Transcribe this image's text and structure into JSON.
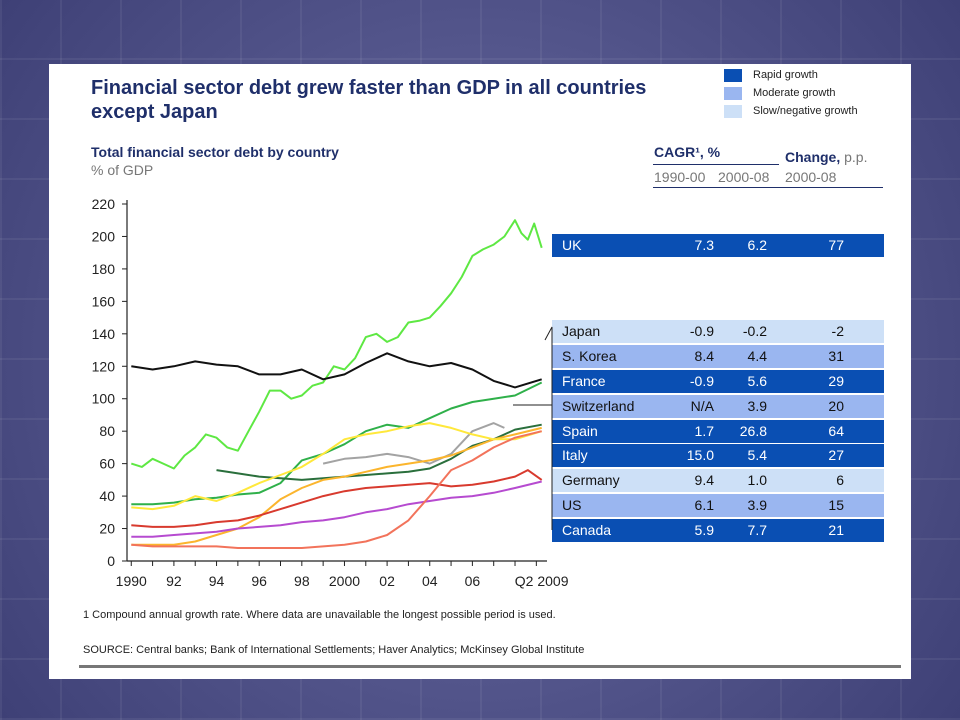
{
  "slide": {
    "title": "Financial sector debt grew faster than GDP in all countries except Japan",
    "subtitle": "Total financial sector debt by country",
    "unit": "% of GDP",
    "footnote": "1 Compound annual growth rate. Where data are unavailable the longest possible period is used.",
    "source": "SOURCE: Central banks; Bank of International Settlements; Haver Analytics; McKinsey Global Institute"
  },
  "legend": [
    {
      "label": "Rapid growth",
      "color": "#0a4fb3"
    },
    {
      "label": "Moderate growth",
      "color": "#9ab6f0"
    },
    {
      "label": "Slow/negative growth",
      "color": "#cde0f7"
    }
  ],
  "table_header": {
    "cagr": "CAGR¹, %",
    "change": "Change,",
    "change_unit": "p.p.",
    "col1": "1990-00",
    "col2": "2000-08",
    "col3": "2000-08"
  },
  "table_rows": [
    {
      "name": "UK",
      "cagr_9000": "7.3",
      "cagr_0008": "6.2",
      "change": "77",
      "group": "rapid"
    },
    {
      "name": "Japan",
      "cagr_9000": "-0.9",
      "cagr_0008": "-0.2",
      "change": "-2",
      "group": "slow"
    },
    {
      "name": "S. Korea",
      "cagr_9000": "8.4",
      "cagr_0008": "4.4",
      "change": "31",
      "group": "moderate"
    },
    {
      "name": "France",
      "cagr_9000": "-0.9",
      "cagr_0008": "5.6",
      "change": "29",
      "group": "rapid"
    },
    {
      "name": "Switzerland",
      "cagr_9000": "N/A",
      "cagr_0008": "3.9",
      "change": "20",
      "group": "moderate"
    },
    {
      "name": "Spain",
      "cagr_9000": "1.7",
      "cagr_0008": "26.8",
      "change": "64",
      "group": "rapid"
    },
    {
      "name": "Italy",
      "cagr_9000": "15.0",
      "cagr_0008": "5.4",
      "change": "27",
      "group": "rapid"
    },
    {
      "name": "Germany",
      "cagr_9000": "9.4",
      "cagr_0008": "1.0",
      "change": "6",
      "group": "slow"
    },
    {
      "name": "US",
      "cagr_9000": "6.1",
      "cagr_0008": "3.9",
      "change": "15",
      "group": "moderate"
    },
    {
      "name": "Canada",
      "cagr_9000": "5.9",
      "cagr_0008": "7.7",
      "change": "21",
      "group": "rapid"
    }
  ],
  "chart_data": {
    "type": "line",
    "title": "Total financial sector debt by country",
    "ylabel": "% of GDP",
    "xlabel": "",
    "ylim": [
      0,
      220
    ],
    "xlim": [
      1989.8,
      2009.5
    ],
    "yticks": [
      0,
      20,
      40,
      60,
      80,
      100,
      120,
      140,
      160,
      180,
      200,
      220
    ],
    "xticks": [
      {
        "label": "1990",
        "x": 1990
      },
      {
        "label": "92",
        "x": 1992
      },
      {
        "label": "94",
        "x": 1994
      },
      {
        "label": "96",
        "x": 1996
      },
      {
        "label": "98",
        "x": 1998
      },
      {
        "label": "2000",
        "x": 2000
      },
      {
        "label": "02",
        "x": 2002
      },
      {
        "label": "04",
        "x": 2004
      },
      {
        "label": "06",
        "x": 2006
      },
      {
        "label": "Q2 2009",
        "x": 2009.25
      }
    ],
    "grid": false,
    "series": [
      {
        "name": "UK",
        "color": "#5ee843",
        "x": [
          1990,
          1990.5,
          1991,
          1991.5,
          1992,
          1992.5,
          1993,
          1993.5,
          1994,
          1994.5,
          1995,
          1995.5,
          1996,
          1996.5,
          1997,
          1997.5,
          1998,
          1998.5,
          1999,
          1999.5,
          2000,
          2000.5,
          2001,
          2001.5,
          2002,
          2002.5,
          2003,
          2003.5,
          2004,
          2004.5,
          2005,
          2005.5,
          2006,
          2006.5,
          2007,
          2007.5,
          2008,
          2008.3,
          2008.6,
          2008.9,
          2009.25
        ],
        "y": [
          60,
          58,
          63,
          60,
          57,
          65,
          70,
          78,
          76,
          70,
          68,
          80,
          92,
          105,
          105,
          100,
          102,
          108,
          110,
          120,
          118,
          125,
          138,
          140,
          135,
          138,
          147,
          148,
          150,
          157,
          165,
          175,
          188,
          192,
          195,
          200,
          210,
          202,
          198,
          208,
          193
        ]
      },
      {
        "name": "Japan",
        "color": "#111111",
        "x": [
          1990,
          1991,
          1992,
          1993,
          1994,
          1995,
          1996,
          1997,
          1998,
          1999,
          2000,
          2001,
          2002,
          2003,
          2004,
          2005,
          2006,
          2007,
          2008,
          2009.25
        ],
        "y": [
          120,
          118,
          120,
          123,
          121,
          120,
          115,
          115,
          118,
          112,
          115,
          122,
          128,
          123,
          120,
          122,
          118,
          111,
          107,
          112
        ]
      },
      {
        "name": "S. Korea",
        "color": "#2fb04a",
        "x": [
          1990,
          1991,
          1992,
          1993,
          1994,
          1995,
          1996,
          1997,
          1998,
          1999,
          2000,
          2001,
          2002,
          2003,
          2004,
          2005,
          2006,
          2007,
          2008,
          2009.25
        ],
        "y": [
          35,
          35,
          36,
          38,
          39,
          41,
          42,
          48,
          62,
          66,
          72,
          80,
          84,
          82,
          88,
          94,
          98,
          100,
          102,
          110
        ]
      },
      {
        "name": "France",
        "color": "#2a6f3c",
        "x": [
          1994,
          1995,
          1996,
          1997,
          1998,
          1999,
          2000,
          2001,
          2002,
          2003,
          2004,
          2005,
          2006,
          2007,
          2008,
          2009.25
        ],
        "y": [
          56,
          54,
          52,
          51,
          50,
          51,
          52,
          53,
          54,
          55,
          57,
          63,
          71,
          75,
          81,
          84
        ]
      },
      {
        "name": "Switzerland",
        "color": "#a3a3a3",
        "x": [
          1999,
          2000,
          2001,
          2002,
          2003,
          2004,
          2005,
          2006,
          2007,
          2007.5
        ],
        "y": [
          60,
          63,
          64,
          66,
          64,
          60,
          66,
          80,
          85,
          82
        ]
      },
      {
        "name": "Spain",
        "color": "#fbb52d",
        "x": [
          1990,
          1991,
          1992,
          1993,
          1994,
          1995,
          1996,
          1997,
          1998,
          1999,
          2000,
          2001,
          2002,
          2003,
          2004,
          2005,
          2006,
          2007,
          2008,
          2009.25
        ],
        "y": [
          10,
          10,
          10,
          12,
          16,
          20,
          27,
          38,
          45,
          50,
          52,
          55,
          58,
          60,
          62,
          65,
          70,
          75,
          78,
          82
        ]
      },
      {
        "name": "Italy",
        "color": "#ffe83b",
        "x": [
          1990,
          1991,
          1992,
          1993,
          1994,
          1995,
          1996,
          1997,
          1998,
          1999,
          2000,
          2001,
          2002,
          2003,
          2004,
          2005,
          2006,
          2007,
          2008,
          2009.25
        ],
        "y": [
          33,
          32,
          34,
          40,
          37,
          42,
          48,
          53,
          58,
          66,
          75,
          78,
          80,
          83,
          85,
          82,
          78,
          75,
          75,
          80
        ]
      },
      {
        "name": "Germany",
        "color": "#d83a2e",
        "x": [
          1990,
          1991,
          1992,
          1993,
          1994,
          1995,
          1996,
          1997,
          1998,
          1999,
          2000,
          2001,
          2002,
          2003,
          2004,
          2005,
          2006,
          2007,
          2008,
          2008.6,
          2009.25
        ],
        "y": [
          22,
          21,
          21,
          22,
          24,
          25,
          28,
          32,
          36,
          40,
          43,
          45,
          46,
          47,
          48,
          46,
          47,
          49,
          52,
          56,
          50
        ]
      },
      {
        "name": "US",
        "color": "#b64bd0",
        "x": [
          1990,
          1991,
          1992,
          1993,
          1994,
          1995,
          1996,
          1997,
          1998,
          1999,
          2000,
          2001,
          2002,
          2003,
          2004,
          2005,
          2006,
          2007,
          2008,
          2009.25
        ],
        "y": [
          15,
          15,
          16,
          17,
          18,
          20,
          21,
          22,
          24,
          25,
          27,
          30,
          32,
          35,
          37,
          39,
          40,
          42,
          45,
          49
        ]
      },
      {
        "name": "Canada",
        "color": "#f2735b",
        "x": [
          1990,
          1991,
          1992,
          1993,
          1994,
          1995,
          1996,
          1997,
          1998,
          1999,
          2000,
          2001,
          2002,
          2003,
          2004,
          2005,
          2006,
          2007,
          2008,
          2009.25
        ],
        "y": [
          10,
          9,
          9,
          9,
          9,
          8,
          8,
          8,
          8,
          9,
          10,
          12,
          16,
          25,
          40,
          56,
          62,
          70,
          76,
          80
        ]
      }
    ]
  }
}
